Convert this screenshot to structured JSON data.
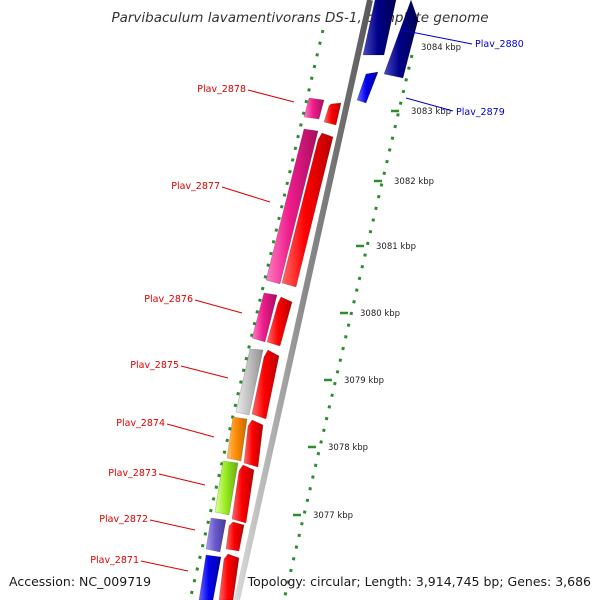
{
  "title": "Parvibaculum lavamentivorans DS-1, complete genome",
  "accession": "Accession: NC_009719",
  "topology": "Topology: circular; Length: 3,914,745 bp; Genes: 3,686",
  "colors": {
    "background": "#ffffff",
    "backbone": "#8c8c8c",
    "tick_dots": "#2e8b2e",
    "label_red": "#dd0000",
    "label_blue": "#0000cc",
    "cds_red": "#ff0000",
    "magenta": "#ee1c8c",
    "grey": "#bfbfbf",
    "orange": "#ff8c00",
    "lime": "#99ee22",
    "slate_blue": "#6a5acd",
    "blue": "#0000ee",
    "navy": "#000088"
  },
  "ticks": [
    {
      "label": "3084 kbp"
    },
    {
      "label": "3083 kbp"
    },
    {
      "label": "3082 kbp"
    },
    {
      "label": "3081 kbp"
    },
    {
      "label": "3080 kbp"
    },
    {
      "label": "3079 kbp"
    },
    {
      "label": "3078 kbp"
    },
    {
      "label": "3077 kbp"
    }
  ],
  "genes": [
    {
      "name": "Plav_2880",
      "strand": "reverse",
      "color": "navy"
    },
    {
      "name": "Plav_2879",
      "strand": "reverse",
      "color": "blue"
    },
    {
      "name": "Plav_2878",
      "strand": "forward",
      "color": "magenta"
    },
    {
      "name": "Plav_2877",
      "strand": "forward",
      "color": "magenta"
    },
    {
      "name": "Plav_2876",
      "strand": "forward",
      "color": "magenta"
    },
    {
      "name": "Plav_2875",
      "strand": "forward",
      "color": "grey"
    },
    {
      "name": "Plav_2874",
      "strand": "forward",
      "color": "orange"
    },
    {
      "name": "Plav_2873",
      "strand": "forward",
      "color": "lime"
    },
    {
      "name": "Plav_2872",
      "strand": "forward",
      "color": "slate_blue"
    },
    {
      "name": "Plav_2871",
      "strand": "forward",
      "color": "blue"
    }
  ]
}
